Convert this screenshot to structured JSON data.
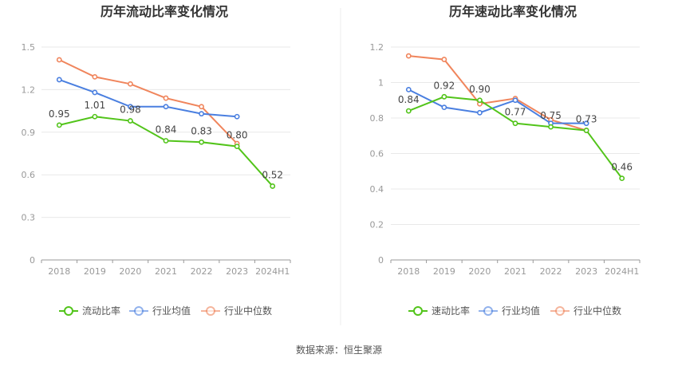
{
  "source_note": "数据来源：恒生聚源",
  "colors": {
    "company": "#52c41a",
    "industry_avg": "#4a7fe0",
    "industry_median": "#f0855c"
  },
  "chart_data": [
    {
      "type": "line",
      "title": "历年流动比率变化情况",
      "categories": [
        "2018",
        "2019",
        "2020",
        "2021",
        "2022",
        "2023",
        "2024H1"
      ],
      "ylim": [
        0,
        1.5
      ],
      "yticks": [
        "0",
        "0.3",
        "0.6",
        "0.9",
        "1.2",
        "1.5"
      ],
      "grid": true,
      "legend_position": "bottom",
      "series": [
        {
          "name": "流动比率",
          "values": [
            0.95,
            1.01,
            0.98,
            0.84,
            0.83,
            0.8,
            0.52
          ],
          "labels": [
            "0.95",
            "1.01",
            "0.98",
            "0.84",
            "0.83",
            "0.80",
            "0.52"
          ]
        },
        {
          "name": "行业均值",
          "values": [
            1.27,
            1.18,
            1.08,
            1.08,
            1.03,
            1.01,
            null
          ]
        },
        {
          "name": "行业中位数",
          "values": [
            1.41,
            1.29,
            1.24,
            1.14,
            1.08,
            0.82,
            null
          ]
        }
      ]
    },
    {
      "type": "line",
      "title": "历年速动比率变化情况",
      "categories": [
        "2018",
        "2019",
        "2020",
        "2021",
        "2022",
        "2023",
        "2024H1"
      ],
      "ylim": [
        0,
        1.2
      ],
      "yticks": [
        "0",
        "0.2",
        "0.4",
        "0.6",
        "0.8",
        "1",
        "1.2"
      ],
      "grid": true,
      "legend_position": "bottom",
      "series": [
        {
          "name": "速动比率",
          "values": [
            0.84,
            0.92,
            0.9,
            0.77,
            0.75,
            0.73,
            0.46
          ],
          "labels": [
            "0.84",
            "0.92",
            "0.90",
            "0.77",
            "0.75",
            "0.73",
            "0.46"
          ]
        },
        {
          "name": "行业均值",
          "values": [
            0.96,
            0.86,
            0.83,
            0.9,
            0.77,
            0.77,
            null
          ]
        },
        {
          "name": "行业中位数",
          "values": [
            1.15,
            1.13,
            0.88,
            0.91,
            0.79,
            0.73,
            null
          ]
        }
      ]
    }
  ]
}
